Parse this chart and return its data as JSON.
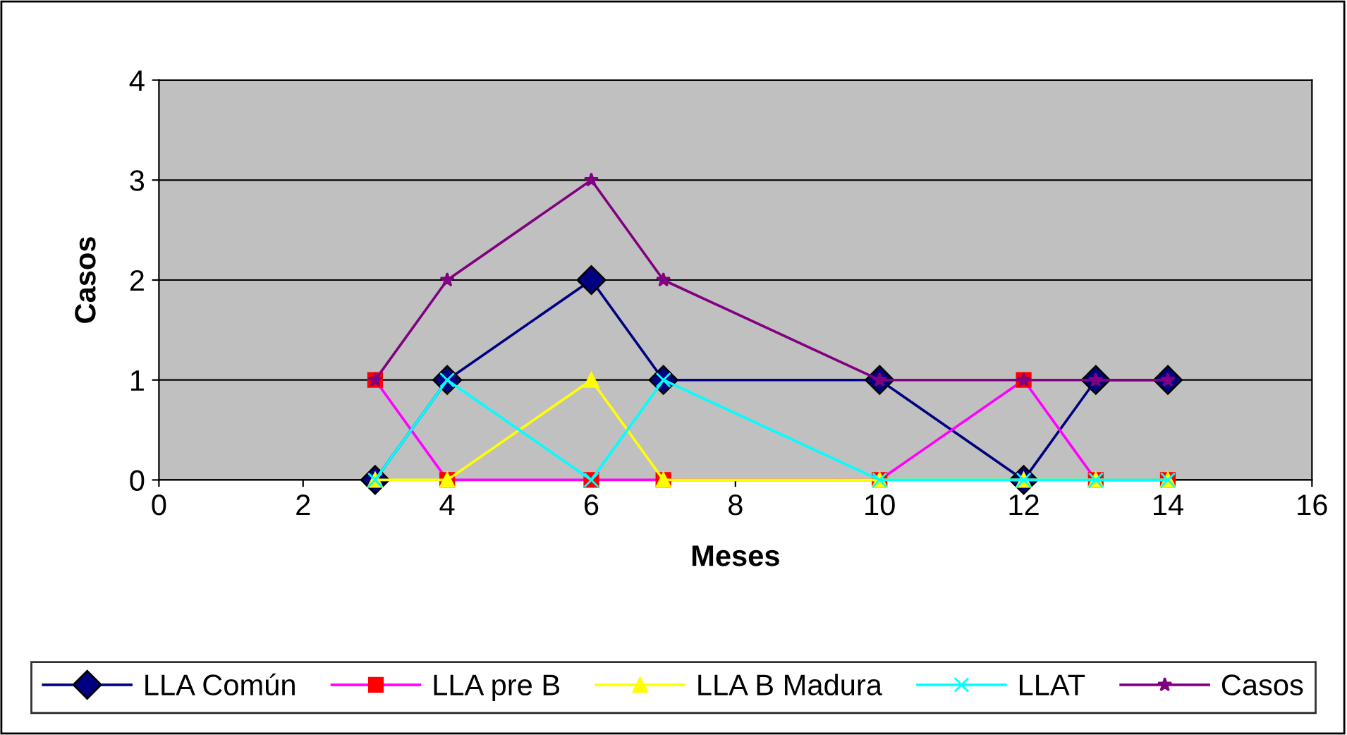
{
  "chart_data": {
    "type": "line",
    "xlabel": "Meses",
    "ylabel": "Casos",
    "x": [
      3,
      4,
      6,
      7,
      10,
      12,
      13,
      14
    ],
    "xlim": [
      0,
      16
    ],
    "xticks": [
      0,
      2,
      4,
      6,
      8,
      10,
      12,
      14,
      16
    ],
    "ylim": [
      0,
      4
    ],
    "yticks": [
      0,
      1,
      2,
      3,
      4
    ],
    "grid": "y",
    "legend": "bottom",
    "series": [
      {
        "name": "LLA Común",
        "color": "#000080",
        "marker": "diamond",
        "values": [
          0,
          1,
          2,
          1,
          1,
          0,
          1,
          1
        ]
      },
      {
        "name": "LLA pre B",
        "color": "#ff00ff",
        "marker": "square",
        "values": [
          1,
          0,
          0,
          0,
          0,
          1,
          0,
          0
        ]
      },
      {
        "name": "LLA B Madura",
        "color": "#ffff00",
        "marker": "triangle",
        "values": [
          0,
          0,
          1,
          0,
          0,
          0,
          0,
          0
        ]
      },
      {
        "name": "LLAT",
        "color": "#00ffff",
        "marker": "cross",
        "values": [
          0,
          1,
          0,
          1,
          0,
          0,
          0,
          0
        ]
      },
      {
        "name": "Casos",
        "color": "#800080",
        "marker": "star",
        "values": [
          1,
          2,
          3,
          2,
          1,
          1,
          1,
          1
        ]
      }
    ]
  }
}
